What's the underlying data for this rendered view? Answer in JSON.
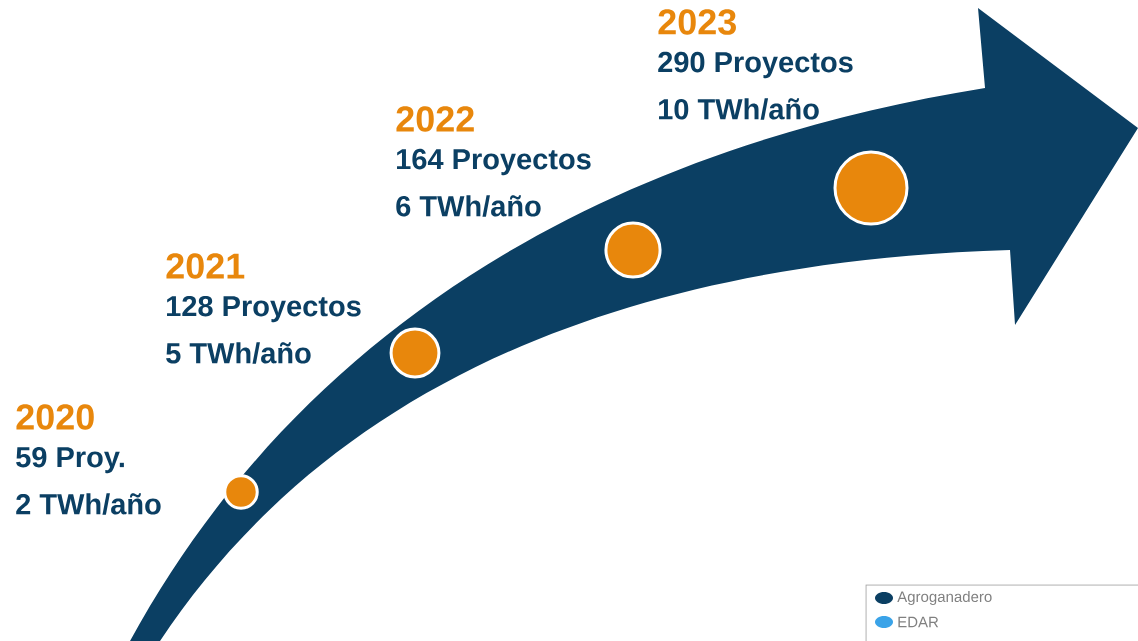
{
  "chart_data": {
    "type": "other",
    "categories": [
      "2020",
      "2021",
      "2022",
      "2023"
    ],
    "series": [
      {
        "color": "#e8870c",
        "values": [
          59,
          128,
          164,
          290
        ],
        "value_labels": [
          "59 Proy.",
          "128 Proyectos",
          "164 Proyectos",
          "290 Proyectos"
        ]
      },
      {
        "color": "#0b3f63",
        "values": [
          2,
          5,
          6,
          10
        ],
        "value_labels": [
          "2 TWh/año",
          "5 TWh/año",
          "6 TWh/año",
          "10 TWh/año"
        ]
      }
    ],
    "annotations": [
      "Agroganadero",
      "EDAR"
    ]
  }
}
